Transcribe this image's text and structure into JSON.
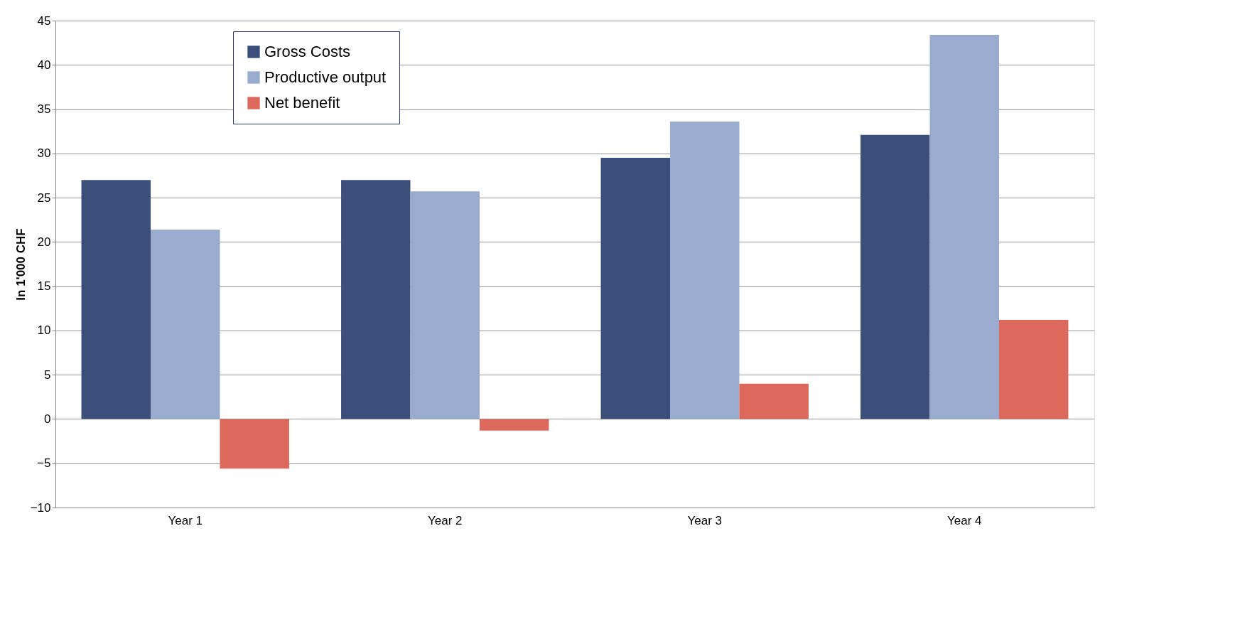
{
  "chart_data": {
    "type": "bar",
    "ylabel": "In 1'000 CHF",
    "categories": [
      "Year 1",
      "Year 2",
      "Year 3",
      "Year 4"
    ],
    "series": [
      {
        "name": "Gross Costs",
        "color": "#3b4f7a",
        "values": [
          27.0,
          27.0,
          29.5,
          32.1
        ]
      },
      {
        "name": "Productive output",
        "color": "#9aabd0",
        "values": [
          21.4,
          25.7,
          33.6,
          43.4
        ]
      },
      {
        "name": "Net benefit",
        "color": "#dc695c",
        "values": [
          -5.6,
          -1.3,
          4.0,
          11.2
        ]
      }
    ],
    "ylim": [
      -10,
      45
    ],
    "yticks": [
      -10,
      -5,
      0,
      5,
      10,
      15,
      20,
      25,
      30,
      35,
      40,
      45
    ],
    "grid": "y",
    "legend": "top left"
  }
}
